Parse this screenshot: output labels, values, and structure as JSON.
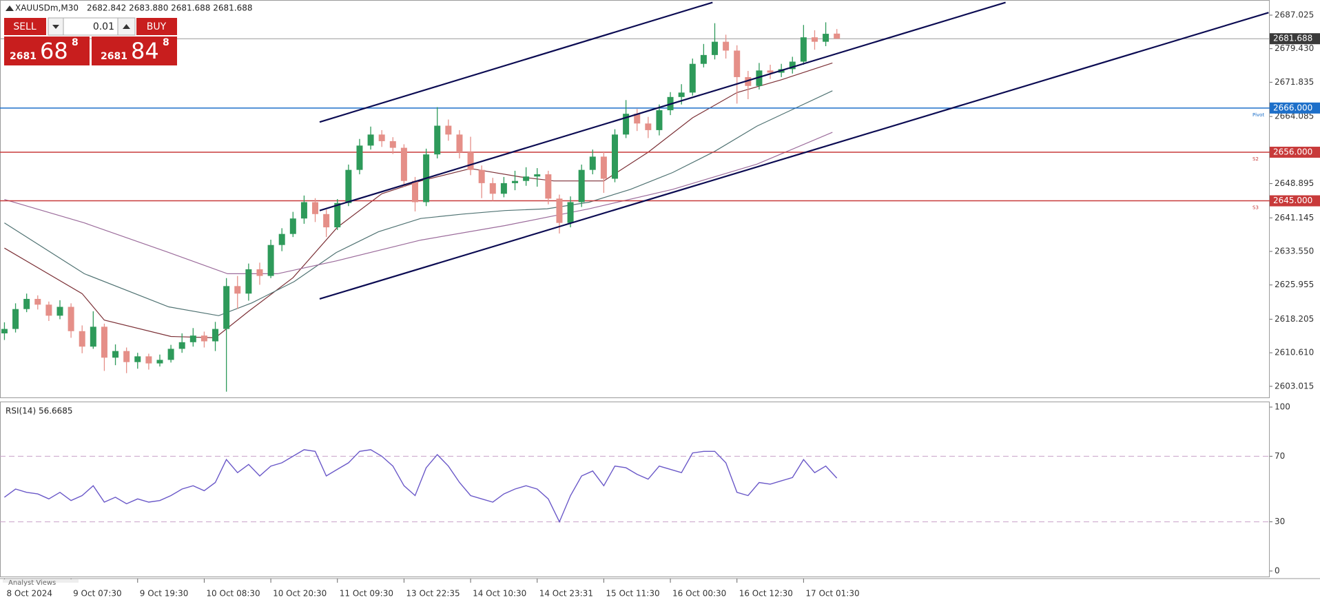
{
  "header": {
    "symbol": "XAUUSDm,M30",
    "ohlc": "2682.842 2683.880 2681.688 2681.688"
  },
  "trade_panel": {
    "sell": "SELL",
    "buy": "BUY",
    "lot": "0.01",
    "bid": {
      "lead": "2681",
      "main": "68",
      "sup": "8"
    },
    "ask": {
      "lead": "2681",
      "main": "84",
      "sup": "8"
    }
  },
  "footer_tab": "Analyst Views",
  "chart_data": [
    {
      "type": "candlestick",
      "up_color": "#2e9a5a",
      "down_color": "#e58f88",
      "xlim": [
        -0.4,
        114
      ],
      "ylim": [
        2600.5,
        2690.45
      ],
      "yticks": [
        {
          "value": 2687.025,
          "label": "2687.025"
        },
        {
          "value": 2679.43,
          "label": "2679.430"
        },
        {
          "value": 2671.835,
          "label": "2671.835"
        },
        {
          "value": 2664.085,
          "label": "2664.085"
        },
        {
          "value": 2648.895,
          "label": "2648.895"
        },
        {
          "value": 2641.145,
          "label": "2641.145"
        },
        {
          "value": 2633.55,
          "label": "2633.550"
        },
        {
          "value": 2625.955,
          "label": "2625.955"
        },
        {
          "value": 2618.205,
          "label": "2618.205"
        },
        {
          "value": 2610.61,
          "label": "2610.610"
        },
        {
          "value": 2603.015,
          "label": "2603.015"
        }
      ],
      "xticks": [
        {
          "value": 0,
          "label": "8 Oct 2024"
        },
        {
          "value": 6,
          "label": "9 Oct 07:30"
        },
        {
          "value": 12,
          "label": "9 Oct 19:30"
        },
        {
          "value": 18,
          "label": "10 Oct 08:30"
        },
        {
          "value": 24,
          "label": "10 Oct 20:30"
        },
        {
          "value": 30,
          "label": "11 Oct 09:30"
        },
        {
          "value": 36,
          "label": "13 Oct 22:35"
        },
        {
          "value": 42,
          "label": "14 Oct 10:30"
        },
        {
          "value": 48,
          "label": "14 Oct 23:31"
        },
        {
          "value": 54,
          "label": "15 Oct 11:30"
        },
        {
          "value": 60,
          "label": "16 Oct 00:30"
        },
        {
          "value": 66,
          "label": "16 Oct 12:30"
        },
        {
          "value": 72,
          "label": "17 Oct 01:30"
        }
      ],
      "ohlc": [
        [
          2615.0,
          2617.5,
          2613.5,
          2616.0
        ],
        [
          2616.0,
          2621.8,
          2615.2,
          2620.5
        ],
        [
          2620.5,
          2624.0,
          2619.8,
          2622.8
        ],
        [
          2622.8,
          2623.6,
          2620.4,
          2621.5
        ],
        [
          2621.5,
          2622.2,
          2617.8,
          2619.0
        ],
        [
          2619.0,
          2622.5,
          2618.2,
          2621.0
        ],
        [
          2621.0,
          2621.8,
          2614.0,
          2615.5
        ],
        [
          2615.5,
          2616.8,
          2610.5,
          2612.0
        ],
        [
          2612.0,
          2620.0,
          2611.5,
          2616.5
        ],
        [
          2616.5,
          2617.2,
          2606.5,
          2609.5
        ],
        [
          2609.5,
          2612.5,
          2607.8,
          2611.0
        ],
        [
          2611.0,
          2611.8,
          2606.0,
          2608.5
        ],
        [
          2608.5,
          2610.6,
          2607.0,
          2609.8
        ],
        [
          2609.8,
          2610.4,
          2606.8,
          2608.2
        ],
        [
          2608.2,
          2610.2,
          2607.5,
          2609.0
        ],
        [
          2609.0,
          2612.4,
          2608.4,
          2611.5
        ],
        [
          2611.5,
          2615.0,
          2610.6,
          2613.0
        ],
        [
          2613.0,
          2616.2,
          2612.0,
          2614.5
        ],
        [
          2614.5,
          2615.4,
          2611.8,
          2613.2
        ],
        [
          2613.2,
          2617.6,
          2611.0,
          2616.0
        ],
        [
          2616.0,
          2627.5,
          2601.8,
          2625.7
        ],
        [
          2625.7,
          2628.0,
          2620.5,
          2624.0
        ],
        [
          2624.0,
          2630.8,
          2622.4,
          2629.5
        ],
        [
          2629.5,
          2631.0,
          2626.0,
          2628.0
        ],
        [
          2628.0,
          2636.2,
          2627.5,
          2635.0
        ],
        [
          2635.0,
          2638.8,
          2633.6,
          2637.5
        ],
        [
          2637.5,
          2642.5,
          2636.8,
          2641.0
        ],
        [
          2641.0,
          2646.2,
          2639.8,
          2644.7
        ],
        [
          2644.7,
          2645.6,
          2640.2,
          2642.0
        ],
        [
          2642.0,
          2643.0,
          2636.8,
          2639.0
        ],
        [
          2639.0,
          2645.4,
          2638.4,
          2644.5
        ],
        [
          2644.5,
          2653.2,
          2643.8,
          2652.0
        ],
        [
          2652.0,
          2659.0,
          2651.0,
          2657.5
        ],
        [
          2657.5,
          2661.8,
          2656.6,
          2660.0
        ],
        [
          2660.0,
          2661.0,
          2657.2,
          2658.5
        ],
        [
          2658.5,
          2659.4,
          2655.6,
          2657.0
        ],
        [
          2657.0,
          2657.8,
          2648.2,
          2649.5
        ],
        [
          2649.5,
          2650.4,
          2642.6,
          2644.7
        ],
        [
          2644.7,
          2656.8,
          2643.8,
          2655.5
        ],
        [
          2655.5,
          2666.2,
          2654.6,
          2662.0
        ],
        [
          2662.0,
          2663.4,
          2658.6,
          2660.0
        ],
        [
          2660.0,
          2661.0,
          2654.6,
          2656.0
        ],
        [
          2656.0,
          2659.5,
          2650.8,
          2652.0
        ],
        [
          2652.0,
          2653.0,
          2645.6,
          2649.0
        ],
        [
          2649.0,
          2650.2,
          2645.0,
          2646.6
        ],
        [
          2646.6,
          2650.4,
          2645.8,
          2649.0
        ],
        [
          2649.0,
          2651.8,
          2647.4,
          2649.5
        ],
        [
          2649.5,
          2652.6,
          2648.4,
          2650.5
        ],
        [
          2650.5,
          2652.4,
          2648.2,
          2651.0
        ],
        [
          2651.0,
          2651.8,
          2644.2,
          2645.5
        ],
        [
          2645.5,
          2646.4,
          2637.6,
          2640.0
        ],
        [
          2640.0,
          2646.0,
          2639.0,
          2644.7
        ],
        [
          2644.7,
          2653.2,
          2643.6,
          2652.0
        ],
        [
          2652.0,
          2656.6,
          2651.0,
          2655.0
        ],
        [
          2655.0,
          2656.2,
          2646.8,
          2650.0
        ],
        [
          2650.0,
          2661.2,
          2649.2,
          2660.0
        ],
        [
          2660.0,
          2667.8,
          2659.2,
          2664.7
        ],
        [
          2664.7,
          2665.8,
          2660.8,
          2662.5
        ],
        [
          2662.5,
          2664.0,
          2659.2,
          2661.0
        ],
        [
          2661.0,
          2666.8,
          2659.8,
          2665.5
        ],
        [
          2665.5,
          2669.6,
          2664.4,
          2668.5
        ],
        [
          2668.5,
          2671.4,
          2666.8,
          2669.5
        ],
        [
          2669.5,
          2677.2,
          2668.8,
          2676.0
        ],
        [
          2676.0,
          2680.5,
          2675.2,
          2678.0
        ],
        [
          2678.0,
          2685.2,
          2677.0,
          2681.0
        ],
        [
          2681.0,
          2682.6,
          2677.2,
          2679.0
        ],
        [
          2679.0,
          2680.2,
          2667.0,
          2673.0
        ],
        [
          2673.0,
          2674.4,
          2668.0,
          2671.0
        ],
        [
          2671.0,
          2676.2,
          2670.2,
          2674.5
        ],
        [
          2674.5,
          2675.8,
          2672.6,
          2674.0
        ],
        [
          2674.0,
          2676.0,
          2673.0,
          2674.8
        ],
        [
          2674.8,
          2677.6,
          2673.8,
          2676.5
        ],
        [
          2676.5,
          2684.8,
          2675.8,
          2682.0
        ],
        [
          2682.0,
          2683.6,
          2679.2,
          2681.0
        ],
        [
          2681.0,
          2685.4,
          2680.0,
          2682.8
        ],
        [
          2682.842,
          2683.88,
          2681.688,
          2681.688
        ]
      ],
      "last_price": {
        "value": 2681.688,
        "label": "2681.688",
        "color": "#3a3a3a"
      },
      "levels": [
        {
          "value": 2666.0,
          "label": "2666.000",
          "tag": "Pivot",
          "color": "#1d6fc9"
        },
        {
          "value": 2656.0,
          "label": "2656.000",
          "tag": "S2",
          "color": "#c83a3a"
        },
        {
          "value": 2645.0,
          "label": "2645.000",
          "tag": "S3",
          "color": "#c83a3a"
        }
      ],
      "overlays": [
        {
          "color": "#7b2f35",
          "x": [
            0,
            7,
            9,
            15,
            19,
            22,
            26,
            30,
            34,
            37.5,
            42,
            46.5,
            49.5,
            54,
            58,
            62,
            66,
            70,
            74.6
          ],
          "values": [
            2634.3,
            2624,
            2618,
            2614.3,
            2614,
            2620,
            2627.6,
            2639,
            2646.6,
            2649.5,
            2652.3,
            2650.4,
            2649.5,
            2649.5,
            2656,
            2663.8,
            2669.5,
            2672.4,
            2676.2
          ]
        },
        {
          "color": "#4f7272",
          "x": [
            0,
            7.2,
            14.8,
            19.3,
            22.3,
            26.1,
            29.9,
            33.7,
            37.5,
            41.3,
            45.1,
            48.9,
            52.7,
            56.4,
            60.2,
            64,
            67.8,
            74.6
          ],
          "values": [
            2640,
            2628.5,
            2621,
            2619,
            2621.9,
            2626.7,
            2633.3,
            2638,
            2641,
            2642,
            2642.8,
            2643.2,
            2644.7,
            2647.6,
            2651.4,
            2656.2,
            2661.9,
            2669.9
          ]
        },
        {
          "color": "#9b6b9b",
          "x": [
            0,
            7.2,
            14.8,
            20.1,
            24.6,
            29.9,
            37.5,
            45.1,
            52.7,
            60.2,
            67.8,
            74.6
          ],
          "values": [
            2645.3,
            2640,
            2633.3,
            2628.5,
            2628.5,
            2631.4,
            2636.1,
            2639.4,
            2643.2,
            2647.6,
            2653.3,
            2660.5
          ]
        }
      ],
      "trendlines": [
        {
          "color": "#0b0b52",
          "x": [
            28.4,
            63.8
          ],
          "values": [
            2662.83,
            2689.9
          ]
        },
        {
          "color": "#0b0b52",
          "x": [
            28.4,
            90.2
          ],
          "values": [
            2642.8,
            2689.9
          ]
        },
        {
          "color": "#0b0b52",
          "x": [
            28.4,
            113.9
          ],
          "values": [
            2622.8,
            2687.6
          ]
        }
      ]
    },
    {
      "type": "line",
      "title": "RSI(14) 56.6685",
      "color": "#6a58c8",
      "level_color": "#c8a0c8",
      "ylim": [
        0,
        100
      ],
      "yticks": [
        100,
        70,
        30,
        0
      ],
      "levels": [
        70,
        30
      ],
      "values": [
        45,
        50,
        48,
        47,
        44,
        48,
        43,
        46,
        52,
        42,
        45,
        41,
        44,
        42,
        43,
        46,
        50,
        52,
        49,
        54,
        68,
        60,
        65,
        58,
        64,
        66,
        70,
        74,
        73,
        58,
        62,
        66,
        73,
        74,
        70,
        64,
        52,
        46,
        63,
        71,
        64,
        54,
        46,
        44,
        42,
        47,
        50,
        52,
        50,
        44,
        30,
        46,
        58,
        61,
        52,
        64,
        63,
        59,
        56,
        64,
        62,
        60,
        72,
        73,
        73,
        66,
        48,
        46,
        54,
        53,
        55,
        57,
        68,
        60,
        64,
        56.6685
      ]
    }
  ]
}
